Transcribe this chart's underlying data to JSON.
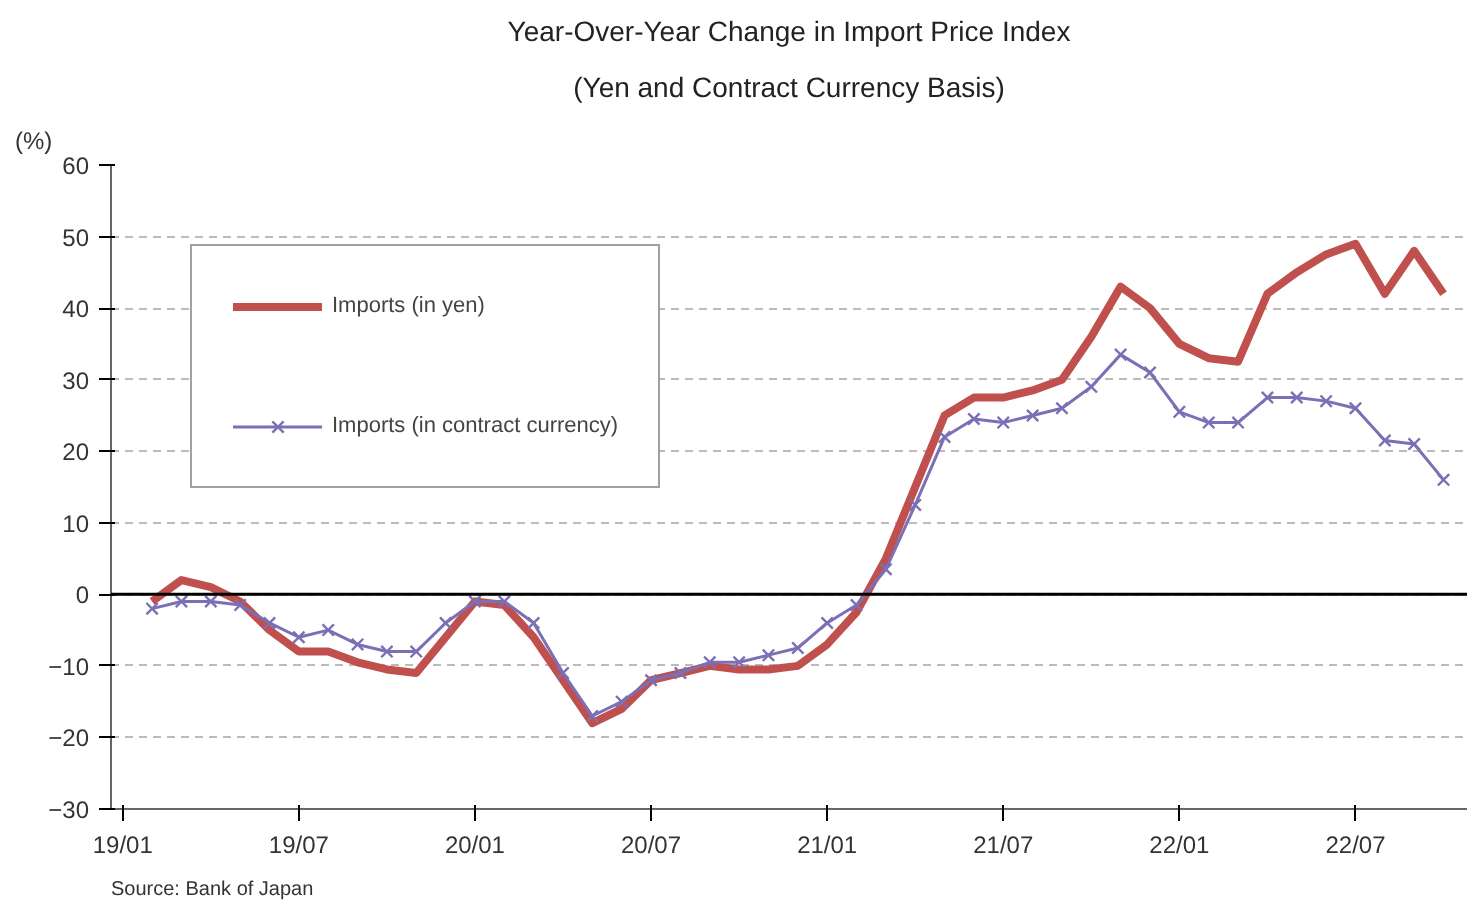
{
  "chart_data": {
    "type": "line",
    "title": "Year-Over-Year Change in Import Price Index",
    "subtitle": "(Yen and Contract Currency Basis)",
    "ylabel": "(%)",
    "categories": [
      "19/01",
      null,
      null,
      null,
      null,
      null,
      "19/07",
      null,
      null,
      null,
      null,
      null,
      "20/01",
      null,
      null,
      null,
      null,
      null,
      "20/07",
      null,
      null,
      null,
      null,
      null,
      "21/01",
      null,
      null,
      null,
      null,
      null,
      "21/07",
      null,
      null,
      null,
      null,
      null,
      "22/01",
      null,
      null,
      null,
      null,
      null,
      "22/07",
      null,
      null,
      null
    ],
    "series": [
      {
        "name": "Imports (in yen)",
        "color": "#c0504d",
        "line_style": "solid",
        "marker": "none",
        "values": [
          null,
          -1,
          2,
          1,
          -1,
          -5,
          -8,
          -8,
          -9.5,
          -10.5,
          -11,
          -6,
          -1,
          -1.5,
          -6,
          -12,
          -18,
          -16,
          -12,
          -11,
          -10,
          -10.5,
          -10.5,
          -10,
          -7,
          -2.5,
          5,
          15,
          25,
          27.5,
          27.5,
          28.5,
          30,
          36,
          43,
          40,
          35,
          33,
          32.5,
          42,
          45,
          47.5,
          49,
          42,
          48,
          42
        ]
      },
      {
        "name": "Imports (in contract currency)",
        "color": "#7b6fb5",
        "line_style": "solid",
        "marker": "cross",
        "values": [
          null,
          -2,
          -1,
          -1,
          -1.5,
          -4,
          -6,
          -5,
          -7,
          -8,
          -8,
          -4,
          -1,
          -1,
          -4,
          -11,
          -17,
          -15,
          -12,
          -11,
          -9.5,
          -9.5,
          -8.5,
          -7.5,
          -4,
          -1.5,
          3.5,
          12.5,
          22,
          24.5,
          24,
          25,
          26,
          29,
          33.5,
          31,
          25.5,
          24,
          24,
          27.5,
          27.5,
          27,
          26,
          21.5,
          21,
          16
        ]
      }
    ],
    "ylim": [
      -30,
      60
    ],
    "yticks": [
      -30,
      -20,
      -10,
      0,
      10,
      20,
      30,
      40,
      50,
      60
    ],
    "grid": "y",
    "legend": "top left",
    "ref_lines": [
      {
        "axis": "y",
        "value": 0,
        "color": "#000000",
        "line_style": "solid"
      }
    ],
    "annotations": [
      "Source: Bank of Japan"
    ]
  }
}
